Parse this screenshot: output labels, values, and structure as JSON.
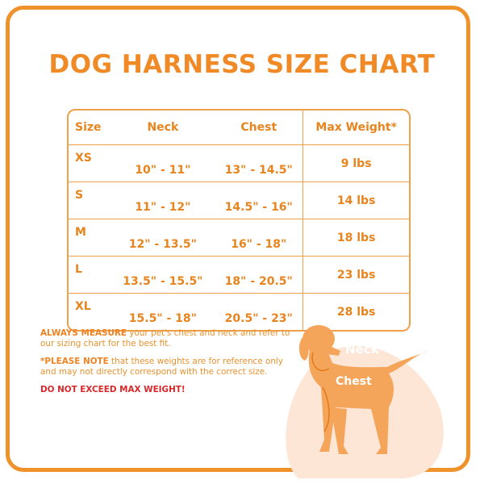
{
  "title": "DOG HARNESS SIZE CHART",
  "table": {
    "headers": [
      "Size",
      "Neck",
      "Chest",
      "Max Weight*"
    ],
    "rows": [
      [
        "XS",
        "10\" - 11\"",
        "13\" - 14.5\"",
        "9 lbs"
      ],
      [
        "S",
        "11\" - 12\"",
        "14.5\" - 16\"",
        "14 lbs"
      ],
      [
        "M",
        "12\" - 13.5\"",
        "16\" - 18\"",
        "18 lbs"
      ],
      [
        "L",
        "13.5\" - 15.5\"",
        "18\" - 20.5\"",
        "23 lbs"
      ],
      [
        "XL",
        "15.5\" - 18\"",
        "20.5\" - 23\"",
        "28 lbs"
      ]
    ]
  },
  "notes": {
    "measure_bold": "ALWAYS MEASURE",
    "measure_text": " your pet's chest and neck and refer to our sizing chart for the best fit.",
    "note_bold": "*PLEASE NOTE",
    "note_text": " that these weights are for reference only and may not directly correspond with the correct size.",
    "warning": "DO NOT EXCEED MAX WEIGHT!"
  },
  "diagram": {
    "neck_label": "Neck",
    "chest_label": "Chest"
  },
  "colors": {
    "accent": "#ef8a26",
    "warning": "#d8282a",
    "dog": "#f5a55a",
    "blob": "#fde6d6"
  }
}
